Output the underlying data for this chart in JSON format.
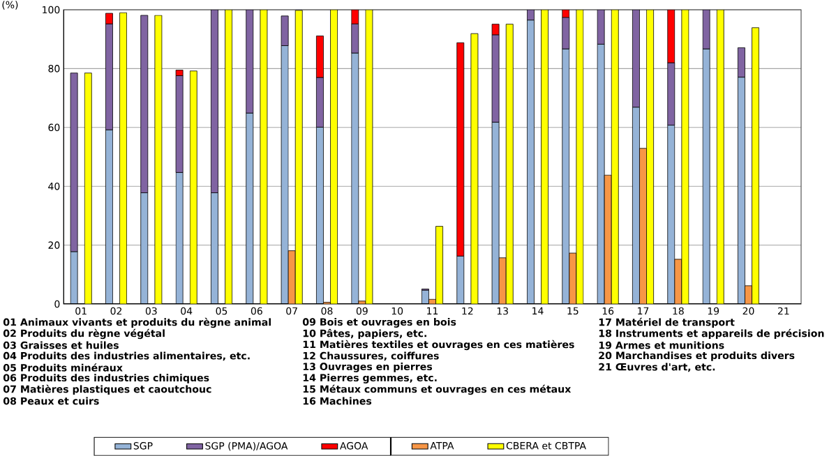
{
  "chart_data": [
    {
      "type": "bar",
      "ylabel": "(%)",
      "categories": [
        "01",
        "02",
        "03",
        "04",
        "05",
        "06",
        "07",
        "08",
        "09",
        "10",
        "11",
        "12",
        "13",
        "14",
        "15",
        "16",
        "17",
        "18",
        "19",
        "20",
        "21"
      ],
      "stacked": true,
      "series": [
        {
          "name": "SGP",
          "color": "#95b3d7",
          "values": [
            17.8,
            59.2,
            37.8,
            44.7,
            37.8,
            64.9,
            87.8,
            60.1,
            85.3,
            null,
            4.7,
            16.3,
            61.8,
            96.5,
            86.7,
            88.3,
            66.9,
            60.8,
            86.7,
            77.1,
            null
          ]
        },
        {
          "name": "SGP (PMA)/AGOA",
          "color": "#8064a2",
          "values": [
            60.7,
            36.0,
            60.3,
            32.9,
            62.2,
            35.1,
            10.1,
            16.9,
            9.9,
            null,
            0.4,
            null,
            29.7,
            3.5,
            10.7,
            11.7,
            33.1,
            21.2,
            13.3,
            10.0,
            null
          ]
        },
        {
          "name": "AGOA",
          "color": "#ff0000",
          "values": [
            null,
            3.6,
            null,
            1.9,
            null,
            null,
            null,
            14.1,
            4.8,
            null,
            null,
            72.5,
            3.6,
            null,
            2.6,
            null,
            null,
            18.0,
            null,
            null,
            null
          ]
        }
      ],
      "ylim": [
        0,
        100
      ],
      "yticks": [
        0,
        20,
        40,
        60,
        80,
        100
      ],
      "grid": "y",
      "legend": "bottom",
      "annotations": [
        "01 Animaux vivants et produits du règne animal",
        "02 Produits du règne végétal",
        "03 Graisses et huiles",
        "04 Produits des industries alimentaires, etc.",
        "05 Produits minéraux",
        "06 Produits des industries chimiques",
        "07 Matières plastiques et caoutchouc",
        "08 Peaux et cuirs",
        "09 Bois et ouvrages en bois",
        "10 Pâtes, papiers, etc.",
        "11 Matières textiles et ouvrages en ces matières",
        "12 Chaussures, coiffures",
        "13 Ouvrages en pierres",
        "14 Pierres gemmes, etc.",
        "15 Métaux communs et ouvrages en ces métaux",
        "16 Machines",
        "17 Matériel de transport",
        "18 Instruments et appareils de précision",
        "19 Armes et munitions",
        "20 Marchandises et produits divers",
        "21 Œuvres d'art, etc."
      ]
    },
    {
      "type": "bar",
      "categories": [
        "01",
        "02",
        "03",
        "04",
        "05",
        "06",
        "07",
        "08",
        "09",
        "10",
        "11",
        "12",
        "13",
        "14",
        "15",
        "16",
        "17",
        "18",
        "19",
        "20",
        "21"
      ],
      "series": [
        {
          "name": "ATPA",
          "color": "#f79646",
          "values": [
            null,
            null,
            null,
            null,
            null,
            null,
            18.1,
            0.6,
            1.0,
            null,
            1.6,
            null,
            15.7,
            null,
            17.3,
            43.8,
            52.9,
            15.2,
            null,
            6.2,
            null
          ]
        },
        {
          "name": "CBERA et CBTPA",
          "color": "#ffff00",
          "values": [
            78.5,
            99.0,
            98.1,
            79.2,
            100,
            100,
            99.8,
            100,
            100,
            null,
            26.4,
            91.9,
            95.1,
            100,
            100,
            100,
            100,
            100,
            100,
            93.9,
            null
          ]
        }
      ],
      "ylim": [
        0,
        100
      ],
      "yticks": [
        0,
        20,
        40,
        60,
        80,
        100
      ],
      "tick_labels": false,
      "legend": "bottom"
    }
  ]
}
